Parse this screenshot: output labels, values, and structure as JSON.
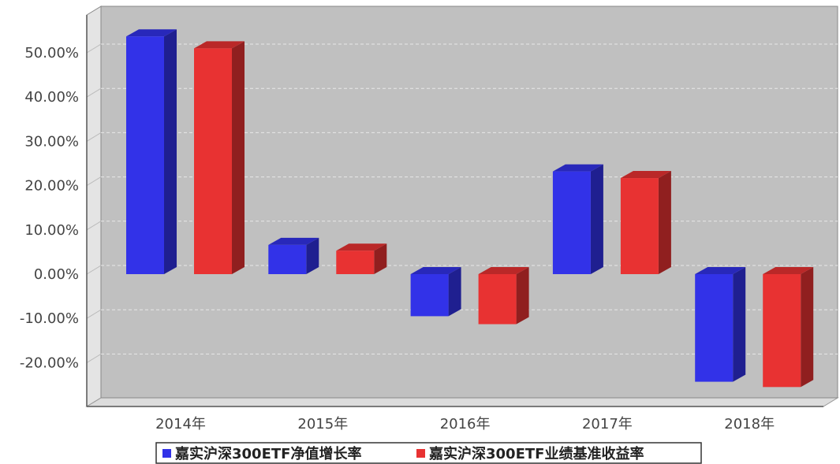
{
  "chart_data": {
    "type": "bar",
    "categories": [
      "2014年",
      "2015年",
      "2016年",
      "2017年",
      "2018年"
    ],
    "series": [
      {
        "name": "嘉实沪深300ETF净值增长率",
        "color": "#3232e8",
        "values": [
          53.7,
          6.6,
          -9.5,
          23.2,
          -24.3
        ]
      },
      {
        "name": "嘉实沪深300ETF业绩基准收益率",
        "color": "#e83232",
        "values": [
          51.0,
          5.3,
          -11.3,
          21.7,
          -25.5
        ]
      }
    ],
    "yticks": [
      "50.00%",
      "40.00%",
      "30.00%",
      "20.00%",
      "10.00%",
      "0.00%",
      "-10.00%",
      "-20.00%"
    ],
    "ytick_values": [
      50,
      40,
      30,
      20,
      10,
      0,
      -10,
      -20
    ],
    "ylim": [
      -30,
      60
    ],
    "grid": true,
    "legend_position": "bottom",
    "plot_background": "#c0c0c0"
  }
}
